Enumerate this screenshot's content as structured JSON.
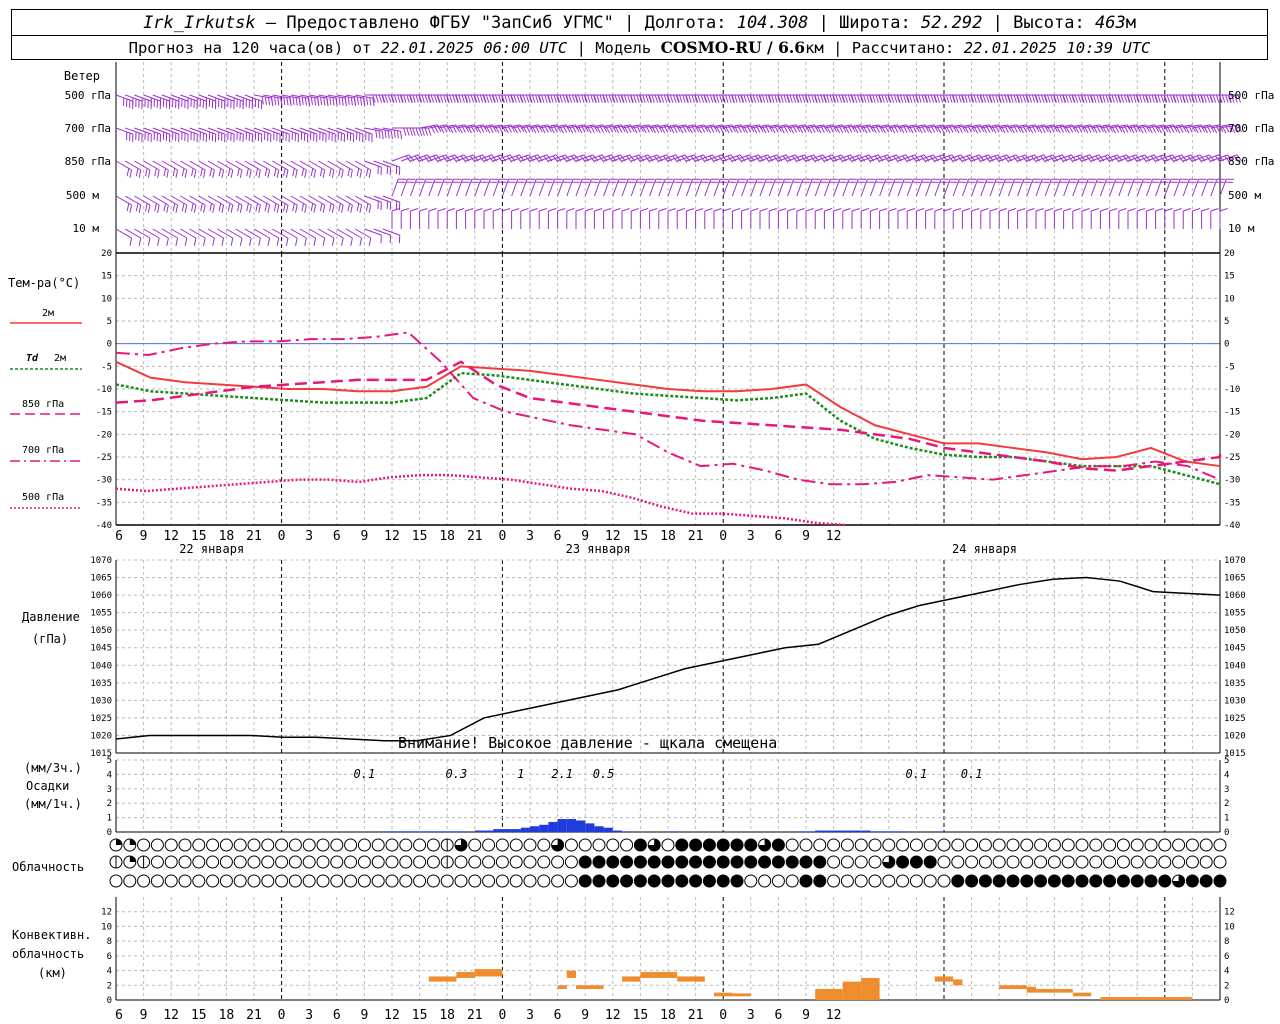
{
  "header": {
    "station": "Irk_Irkutsk",
    "provider": " — Предоставлено ФГБУ \"ЗапСиб УГМС\" | Долгота: ",
    "lon": "104.308",
    "lat_label": " | Широта: ",
    "lat": "52.292",
    "alt_label": " | Высота: ",
    "alt": "463",
    "alt_unit": "м",
    "forecast_label": "Прогноз на 120 часа(ов) от ",
    "start": "22.01.2025 06:00 UTC",
    "model_label": "  | Модель ",
    "model": "COSMO-RU / 6.6",
    "model_unit": "км | Рассчитано: ",
    "computed": "22.01.2025 10:39 UTC"
  },
  "labels": {
    "wind": "Ветер",
    "wind_levels": [
      "500 гПа",
      "700 гПа",
      "850 гПа",
      "500 м",
      "10  м"
    ],
    "temp": "Тем-ра(°C)",
    "temp_legend": [
      "2м",
      "2м",
      "850 гПа",
      "700 гПа",
      "500 гПа"
    ],
    "td": "Td",
    "pressure": "Давление",
    "pressure_unit": "(гПа)",
    "pressure_warning": "Внимание! Высокое давление - щкала смещена",
    "precip_unit1": "(мм/3ч.)",
    "precip_label": "Осадки",
    "precip_unit2": "(мм/1ч.)",
    "cloud": "Облачность",
    "conv1": "Конвективн.",
    "conv2": "облачность",
    "conv3": "(км)"
  },
  "colors": {
    "t2m": "#f03c3c",
    "td2m": "#1e8c1e",
    "levels": "#e6197a",
    "wind": "#9a32cd",
    "precip": "#1e3cdc",
    "conv": "#ee8c2e",
    "zero": "#5a6edc"
  },
  "chart_data": [
    {
      "type": "line",
      "title": "Тем-ра(°C)",
      "x_hours_from_start": [
        0,
        3,
        6,
        9,
        12,
        15,
        18,
        21,
        24,
        27,
        30,
        33,
        36,
        39,
        42,
        45,
        48,
        51,
        54,
        57,
        60,
        63,
        66,
        69,
        72,
        75,
        78,
        81,
        84,
        87,
        90,
        93,
        96,
        99,
        102,
        105,
        108,
        111,
        114,
        117,
        120
      ],
      "tick_labels": [
        "6",
        "9",
        "12",
        "15",
        "18",
        "21",
        "0",
        "3",
        "6",
        "9",
        "12",
        "15",
        "18",
        "21",
        "0",
        "3",
        "6",
        "9",
        "12",
        "15",
        "18",
        "21",
        "0",
        "3",
        "6",
        "9",
        "12"
      ],
      "day_labels": [
        "22 января",
        "23 января",
        "24 января"
      ],
      "ylim": [
        -40,
        20
      ],
      "yticks": [
        20,
        15,
        10,
        5,
        0,
        -5,
        -10,
        -15,
        -20,
        -25,
        -30,
        -35,
        -40
      ],
      "series": [
        {
          "name": "2м",
          "values": [
            -4,
            -7.5,
            -8.5,
            -9,
            -9.5,
            -10,
            -10,
            -10.5,
            -10.5,
            -9.5,
            -5,
            -5.5,
            -6,
            -7,
            -8,
            -9,
            -10,
            -10.5,
            -10.5,
            -10,
            -9,
            -14,
            -18,
            -20,
            -22,
            -22,
            -23,
            -24,
            -25.5,
            -25,
            -23,
            -26,
            -27
          ]
        },
        {
          "name": "Td 2м",
          "values": [
            -9,
            -10.5,
            -11,
            -11.5,
            -12,
            -12.5,
            -13,
            -13,
            -13,
            -12,
            -6.5,
            -7,
            -8,
            -9,
            -10,
            -11,
            -11.5,
            -12,
            -12.5,
            -12,
            -11,
            -17,
            -21,
            -23,
            -24.5,
            -25,
            -25,
            -26,
            -27,
            -27,
            -27,
            -29,
            -31
          ]
        },
        {
          "name": "850 гПа",
          "values": [
            -13,
            -12.5,
            -11.5,
            -10.5,
            -9.5,
            -9,
            -8.5,
            -8,
            -8,
            -8,
            -4,
            -9,
            -12,
            -13,
            -14,
            -15,
            -16,
            -17,
            -17.5,
            -18,
            -18.5,
            -19,
            -20,
            -21,
            -23,
            -24,
            -25,
            -26,
            -27.5,
            -28,
            -27,
            -26,
            -25,
            -24
          ]
        },
        {
          "name": "700 гПа",
          "values": [
            -2,
            -2.5,
            -1,
            0,
            0.5,
            0.5,
            1,
            1,
            1.5,
            2.5,
            -4,
            -12,
            -15,
            -16.5,
            -18,
            -19,
            -20,
            -24,
            -27,
            -26.5,
            -28,
            -30,
            -31,
            -31,
            -30.5,
            -29,
            -29.5,
            -30,
            -29,
            -28,
            -27,
            -27,
            -26,
            -27,
            -30
          ]
        },
        {
          "name": "500 гПа",
          "values": [
            -32,
            -32.5,
            -32,
            -31.5,
            -31,
            -30.5,
            -30,
            -30,
            -30.5,
            -29.5,
            -29,
            -29,
            -29.5,
            -30,
            -31,
            -32,
            -32.5,
            -34,
            -36,
            -37.5,
            -37.5,
            -38,
            -38.5,
            -39.5,
            -40.5
          ]
        }
      ]
    },
    {
      "type": "line",
      "title": "Давление",
      "ylabel": "(гПа)",
      "ylim": [
        1015,
        1070
      ],
      "yticks": [
        1070,
        1065,
        1060,
        1055,
        1050,
        1045,
        1040,
        1035,
        1030,
        1025,
        1020,
        1015
      ],
      "series": [
        {
          "name": "Давление",
          "values": [
            1019,
            1020,
            1020,
            1020,
            1020,
            1019.5,
            1019.5,
            1019,
            1018.5,
            1018.5,
            1020,
            1025,
            1027,
            1029,
            1031,
            1033,
            1036,
            1039,
            1041,
            1043,
            1045,
            1046,
            1050,
            1054,
            1057,
            1059,
            1061,
            1063,
            1064.5,
            1065,
            1064,
            1061,
            1060.5,
            1060
          ]
        }
      ]
    },
    {
      "type": "bar",
      "title": "Осадки",
      "ylim": [
        0,
        5
      ],
      "yticks": [
        5,
        4,
        3,
        2,
        1,
        0
      ],
      "totals_3h": [
        "0.1",
        "0.3",
        "1",
        "2.1",
        "0.5",
        "0.1",
        "0.1"
      ],
      "hourly_mm": [
        0,
        0,
        0,
        0,
        0,
        0,
        0,
        0,
        0,
        0,
        0,
        0,
        0,
        0,
        0,
        0,
        0,
        0,
        0,
        0,
        0,
        0,
        0,
        0,
        0,
        0,
        0,
        0,
        0,
        0.05,
        0.05,
        0.05,
        0.05,
        0.05,
        0.05,
        0.05,
        0.05,
        0.05,
        0,
        0.1,
        0.1,
        0.2,
        0.2,
        0.2,
        0.3,
        0.4,
        0.5,
        0.7,
        0.9,
        0.9,
        0.8,
        0.6,
        0.4,
        0.3,
        0.1,
        0.05,
        0,
        0,
        0,
        0,
        0.05,
        0,
        0,
        0,
        0,
        0,
        0,
        0,
        0,
        0,
        0,
        0,
        0,
        0,
        0.05,
        0.05,
        0.1,
        0.1,
        0.1,
        0.1,
        0.1,
        0.1,
        0.05,
        0.05,
        0.05,
        0.05,
        0,
        0,
        0,
        0.05,
        0,
        0,
        0,
        0,
        0,
        0,
        0,
        0,
        0,
        0,
        0,
        0,
        0,
        0,
        0,
        0,
        0,
        0,
        0,
        0,
        0,
        0,
        0,
        0,
        0,
        0,
        0,
        0,
        0
      ]
    },
    {
      "type": "table",
      "title": "Облачность",
      "rows": [
        "11000000000000000000000023000000300000430444444340000000000000000000000000000000000000000000000000000000000000",
        "21200000000000000000000020000000004444444444444444440000344400000000000000000000000000000000000000000000000000",
        "00000000000000000000000000000000004444444444440000440000000004444444444444444344444434000000000000000000000000"
      ]
    },
    {
      "type": "bar",
      "title": "Конвективн. облачность (км)",
      "ylim": [
        0,
        14
      ],
      "yticks": [
        12,
        10,
        8,
        6,
        4,
        2,
        0
      ],
      "segments": [
        {
          "h0": 34,
          "h1": 37,
          "bottom": 2.5,
          "top": 3.2
        },
        {
          "h0": 37,
          "h1": 39,
          "bottom": 3,
          "top": 3.8
        },
        {
          "h0": 39,
          "h1": 42,
          "bottom": 3.2,
          "top": 4.2
        },
        {
          "h0": 48,
          "h1": 49,
          "bottom": 1.5,
          "top": 2
        },
        {
          "h0": 49,
          "h1": 50,
          "bottom": 3,
          "top": 4
        },
        {
          "h0": 50,
          "h1": 53,
          "bottom": 1.5,
          "top": 2
        },
        {
          "h0": 55,
          "h1": 57,
          "bottom": 2.5,
          "top": 3.2
        },
        {
          "h0": 57,
          "h1": 61,
          "bottom": 3,
          "top": 3.8
        },
        {
          "h0": 61,
          "h1": 64,
          "bottom": 2.5,
          "top": 3.2
        },
        {
          "h0": 65,
          "h1": 67,
          "bottom": 0.5,
          "top": 1
        },
        {
          "h0": 67,
          "h1": 69,
          "bottom": 0.5,
          "top": 0.9
        },
        {
          "h0": 76,
          "h1": 79,
          "bottom": 0,
          "top": 1.5
        },
        {
          "h0": 79,
          "h1": 81,
          "bottom": 0,
          "top": 2.5
        },
        {
          "h0": 81,
          "h1": 83,
          "bottom": 0,
          "top": 3
        },
        {
          "h0": 89,
          "h1": 91,
          "bottom": 2.5,
          "top": 3.2
        },
        {
          "h0": 91,
          "h1": 92,
          "bottom": 2,
          "top": 2.8
        },
        {
          "h0": 96,
          "h1": 99,
          "bottom": 1.5,
          "top": 2
        },
        {
          "h0": 99,
          "h1": 100,
          "bottom": 1,
          "top": 1.8
        },
        {
          "h0": 100,
          "h1": 104,
          "bottom": 1,
          "top": 1.5
        },
        {
          "h0": 104,
          "h1": 106,
          "bottom": 0.5,
          "top": 1
        },
        {
          "h0": 107,
          "h1": 117,
          "bottom": 0,
          "top": 0.4
        }
      ]
    },
    {
      "type": "scatter",
      "title": "Ветер",
      "levels": [
        "500 гПа",
        "700 гПа",
        "850 гПа",
        "500 м",
        "10  м"
      ],
      "direction_deg_by_hour": {
        "500 гПа": [
          290,
          290,
          290,
          290,
          290,
          280,
          280,
          280,
          280,
          270,
          270,
          270,
          270,
          270,
          270,
          270,
          270,
          270,
          270,
          270,
          270,
          270,
          270,
          270,
          270,
          270,
          270,
          270,
          270,
          270,
          270,
          270,
          270,
          270,
          270,
          270,
          270,
          270,
          270,
          270,
          270
        ],
        "700 гПа": [
          290,
          290,
          290,
          290,
          290,
          290,
          290,
          290,
          290,
          280,
          270,
          260,
          260,
          260,
          260,
          260,
          260,
          260,
          260,
          260,
          260,
          260,
          260,
          260,
          260,
          260,
          260,
          260,
          260,
          260,
          260,
          260,
          260,
          260,
          260,
          260,
          260,
          260,
          260,
          260,
          260
        ],
        "850 гПа": [
          300,
          300,
          300,
          300,
          300,
          300,
          300,
          300,
          300,
          290,
          250,
          250,
          250,
          250,
          250,
          250,
          250,
          250,
          250,
          250,
          250,
          250,
          250,
          250,
          250,
          250,
          250,
          250,
          250,
          250,
          250,
          250,
          250,
          250,
          250,
          250,
          250,
          250,
          250,
          250,
          250
        ],
        "500 м": [
          300,
          300,
          300,
          300,
          300,
          300,
          300,
          300,
          300,
          290,
          200,
          200,
          200,
          200,
          200,
          200,
          200,
          200,
          200,
          200,
          200,
          200,
          200,
          200,
          200,
          200,
          200,
          200,
          200,
          200,
          200,
          200,
          200,
          200,
          200,
          200,
          200,
          200,
          200,
          200,
          200
        ],
        "10  м": [
          300,
          300,
          300,
          300,
          300,
          300,
          300,
          300,
          300,
          290,
          180,
          180,
          180,
          180,
          180,
          180,
          180,
          180,
          180,
          180,
          180,
          180,
          180,
          180,
          180,
          180,
          180,
          180,
          180,
          180,
          180,
          180,
          180,
          180,
          180,
          180,
          180,
          180,
          180,
          180,
          180
        ]
      },
      "speed_ms_by_level": {
        "500 гПа": 18,
        "700 гПа": 14,
        "850 гПа": 10,
        "500 м": 8,
        "10  м": 4
      }
    }
  ]
}
